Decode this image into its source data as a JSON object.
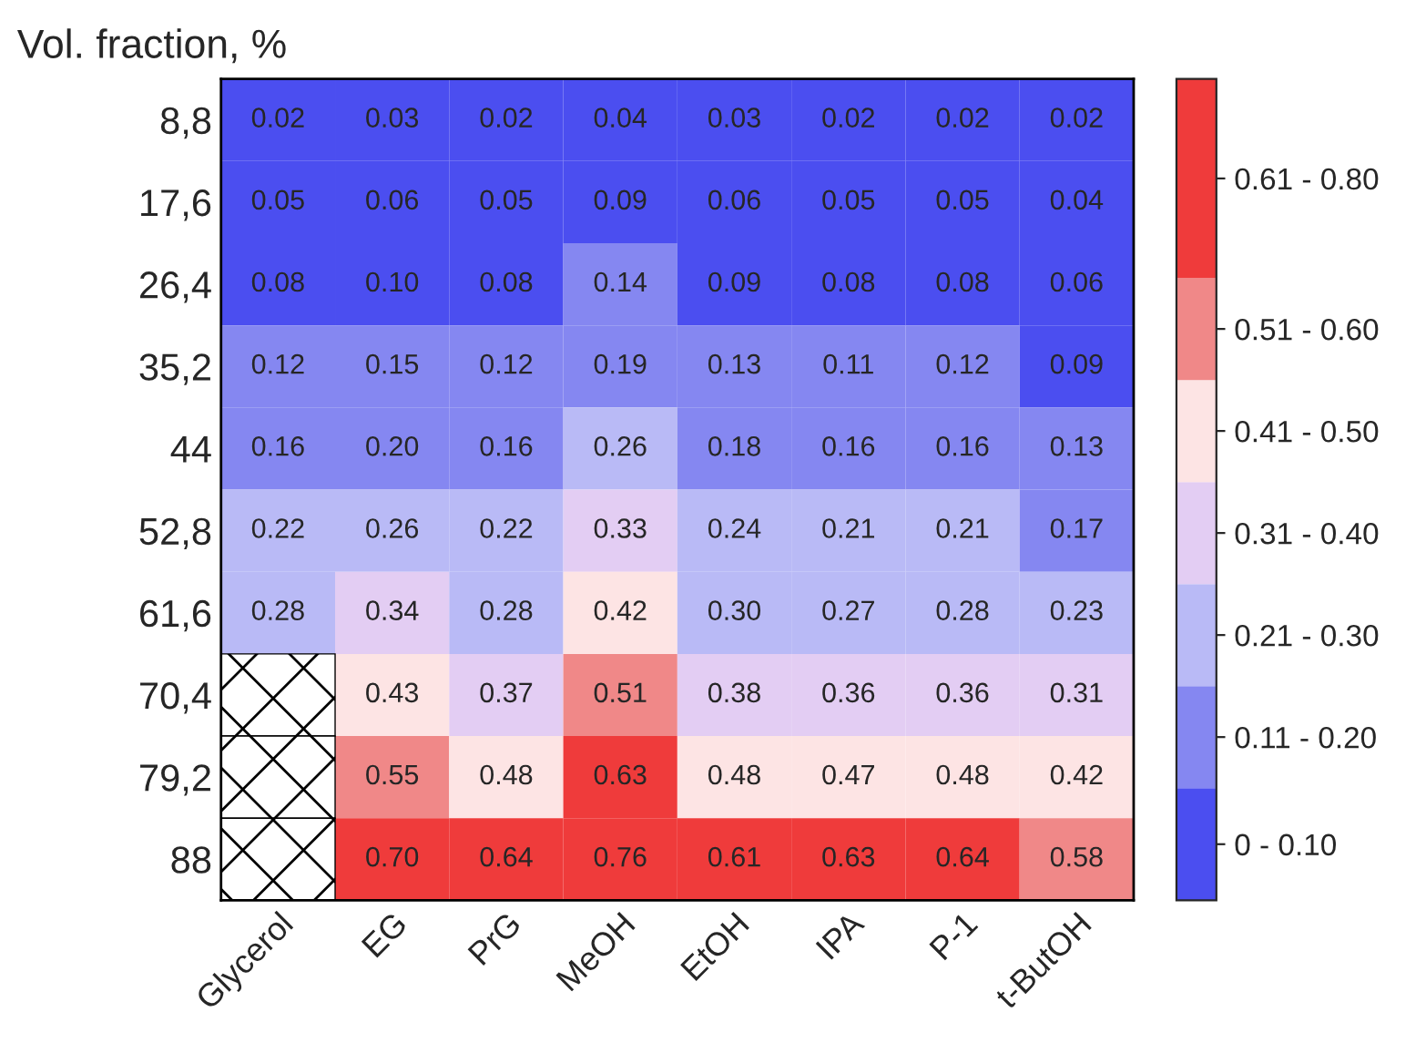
{
  "chart_data": {
    "type": "heatmap",
    "ylabel": "Vol. fraction, %",
    "categories": [
      "Glycerol",
      "EG",
      "PrG",
      "MeOH",
      "EtOH",
      "IPA",
      "P-1",
      "t-ButOH"
    ],
    "y_categories": [
      "8,8",
      "17,6",
      "26,4",
      "35,2",
      "44",
      "52,8",
      "61,6",
      "70,4",
      "79,2",
      "88"
    ],
    "cells": [
      [
        0.02,
        0.03,
        0.02,
        0.04,
        0.03,
        0.02,
        0.02,
        0.02
      ],
      [
        0.05,
        0.06,
        0.05,
        0.09,
        0.06,
        0.05,
        0.05,
        0.04
      ],
      [
        0.08,
        0.1,
        0.08,
        0.14,
        0.09,
        0.08,
        0.08,
        0.06
      ],
      [
        0.12,
        0.15,
        0.12,
        0.19,
        0.13,
        0.11,
        0.12,
        0.09
      ],
      [
        0.16,
        0.2,
        0.16,
        0.26,
        0.18,
        0.16,
        0.16,
        0.13
      ],
      [
        0.22,
        0.26,
        0.22,
        0.33,
        0.24,
        0.21,
        0.21,
        0.17
      ],
      [
        0.28,
        0.34,
        0.28,
        0.42,
        0.3,
        0.27,
        0.28,
        0.23
      ],
      [
        null,
        0.43,
        0.37,
        0.51,
        0.38,
        0.36,
        0.36,
        0.31
      ],
      [
        null,
        0.55,
        0.48,
        0.63,
        0.48,
        0.47,
        0.48,
        0.42
      ],
      [
        null,
        0.7,
        0.64,
        0.76,
        0.61,
        0.63,
        0.64,
        0.58
      ]
    ],
    "cell_labels": [
      [
        "0.02",
        "0.03",
        "0.02",
        "0.04",
        "0.03",
        "0.02",
        "0.02",
        "0.02"
      ],
      [
        "0.05",
        "0.06",
        "0.05",
        "0.09",
        "0.06",
        "0.05",
        "0.05",
        "0.04"
      ],
      [
        "0.08",
        "0.10",
        "0.08",
        "0.14",
        "0.09",
        "0.08",
        "0.08",
        "0.06"
      ],
      [
        "0.12",
        "0.15",
        "0.12",
        "0.19",
        "0.13",
        "0.11",
        "0.12",
        "0.09"
      ],
      [
        "0.16",
        "0.20",
        "0.16",
        "0.26",
        "0.18",
        "0.16",
        "0.16",
        "0.13"
      ],
      [
        "0.22",
        "0.26",
        "0.22",
        "0.33",
        "0.24",
        "0.21",
        "0.21",
        "0.17"
      ],
      [
        "0.28",
        "0.34",
        "0.28",
        "0.42",
        "0.30",
        "0.27",
        "0.28",
        "0.23"
      ],
      [
        null,
        "0.43",
        "0.37",
        "0.51",
        "0.38",
        "0.36",
        "0.36",
        "0.31"
      ],
      [
        null,
        "0.55",
        "0.48",
        "0.63",
        "0.48",
        "0.47",
        "0.48",
        "0.42"
      ],
      [
        null,
        "0.70",
        "0.64",
        "0.76",
        "0.61",
        "0.63",
        "0.64",
        "0.58"
      ]
    ],
    "clim": [
      -0.005,
      0.8
    ],
    "cticks": [
      {
        "value": 0.05,
        "label": "0 - 0.10"
      },
      {
        "value": 0.155,
        "label": "0.11 - 0.20"
      },
      {
        "value": 0.255,
        "label": "0.21 - 0.30"
      },
      {
        "value": 0.355,
        "label": "0.31 - 0.40"
      },
      {
        "value": 0.455,
        "label": "0.41 - 0.50"
      },
      {
        "value": 0.555,
        "label": "0.51 - 0.60"
      },
      {
        "value": 0.7025,
        "label": "0.61 - 0.80"
      }
    ],
    "colors": [
      "#4b4ef0",
      "#8587f1",
      "#b9baf6",
      "#e3cdf3",
      "#fde4e4",
      "#f08888",
      "#ef3b3b"
    ],
    "data_labels": true
  }
}
